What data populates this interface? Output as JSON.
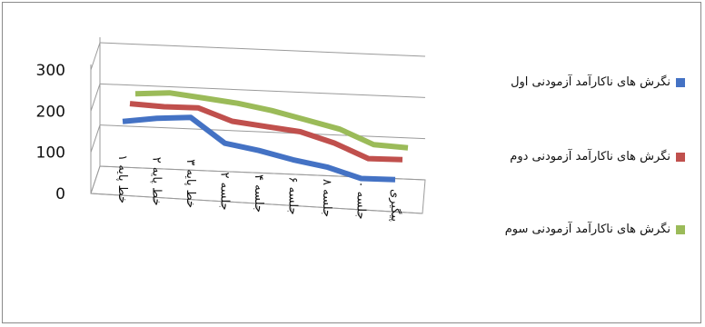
{
  "chart_data": {
    "type": "line",
    "categories": [
      "خط پایه ۱",
      "خط پایه ۲",
      "خط پایه ۳",
      "جلسه ۲",
      "جلسه ۴",
      "جلسه ۶",
      "جلسه ۸",
      "جلسه ۱۰",
      "پیگیری"
    ],
    "series": [
      {
        "name": "نگرش های ناکارآمد آزمودنی اول",
        "color": "#4472C4",
        "values": [
          175,
          185,
          190,
          130,
          115,
          95,
          80,
          55,
          55
        ]
      },
      {
        "name": "نگرش های ناکارآمد آزمودنی دوم",
        "color": "#C0504D",
        "values": [
          205,
          200,
          200,
          170,
          160,
          150,
          125,
          90,
          90
        ]
      },
      {
        "name": "نگرش های ناکارآمد آزمودنی سوم",
        "color": "#9BBB59",
        "values": [
          220,
          225,
          215,
          205,
          190,
          170,
          150,
          115,
          110
        ]
      }
    ],
    "yticks": [
      "0",
      "100",
      "200",
      "300"
    ],
    "ylim": [
      0,
      300
    ],
    "legend": "right",
    "grid": true
  }
}
